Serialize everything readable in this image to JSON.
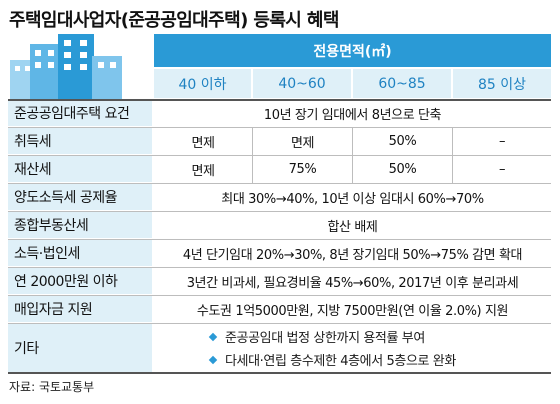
{
  "title": "주택임대사업자(준공공임대주택) 등록시 혜택",
  "area_header": "전용면적(㎡)",
  "area_columns": [
    "40 이하",
    "40~60",
    "60~85",
    "85 이상"
  ],
  "rows": [
    {
      "label": "준공공임대주택 요건",
      "merged": "10년 장기 임대에서 8년으로 단축"
    },
    {
      "label": "취득세",
      "cells": [
        "면제",
        "면제",
        "50%",
        "–"
      ]
    },
    {
      "label": "재산세",
      "cells": [
        "면제",
        "75%",
        "50%",
        "–"
      ]
    },
    {
      "label": "양도소득세 공제율",
      "merged": "최대 30%→40%, 10년 이상 임대시 60%→70%"
    },
    {
      "label": "종합부동산세",
      "merged": "합산 배제"
    },
    {
      "label": "소득·법인세",
      "merged": "4년 단기임대 20%→30%, 8년 장기임대 50%→75% 감면 확대"
    },
    {
      "label": "연 2000만원 이하",
      "merged": "3년간 비과세, 필요경비율 45%→60%, 2017년 이후 분리과세"
    },
    {
      "label": "매입자금 지원",
      "merged": "수도권 1억5000만원, 지방 7500만원(연 이율 2.0%) 지원"
    }
  ],
  "etc": {
    "label": "기타",
    "items": [
      "준공공임대 법정 상한까지 용적률 부여",
      "다세대·연립 층수제한 4층에서 5층으로 완화"
    ]
  },
  "source": "자료: 국토교통부",
  "colors": {
    "accent": "#2a9ad6",
    "header_text": "#1f82c2",
    "label_bg": "#dff0f8"
  }
}
